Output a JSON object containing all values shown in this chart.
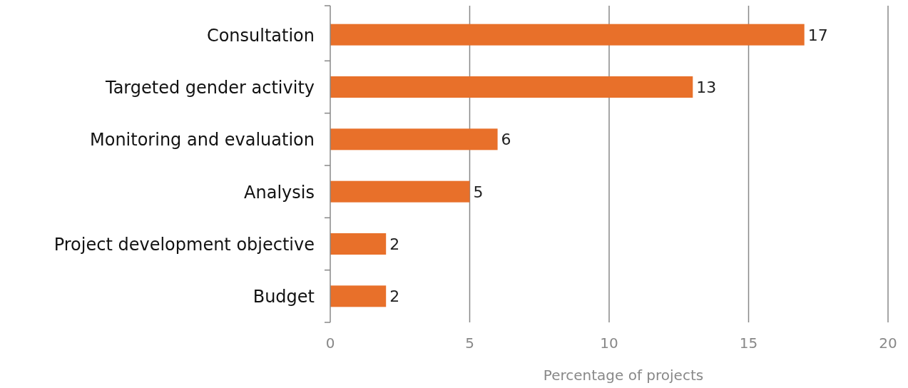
{
  "chart_data": {
    "type": "bar",
    "orientation": "horizontal",
    "categories": [
      "Consultation",
      "Targeted gender activity",
      "Monitoring and evaluation",
      "Analysis",
      "Project development objective",
      "Budget"
    ],
    "values": [
      17,
      13,
      6,
      5,
      2,
      2
    ],
    "color": "#e8702a",
    "xlabel": "Percentage of projects",
    "xlim": [
      0,
      20
    ],
    "xticks": [
      0,
      5,
      10,
      15,
      20
    ],
    "grid": "x",
    "data_labels": true
  }
}
